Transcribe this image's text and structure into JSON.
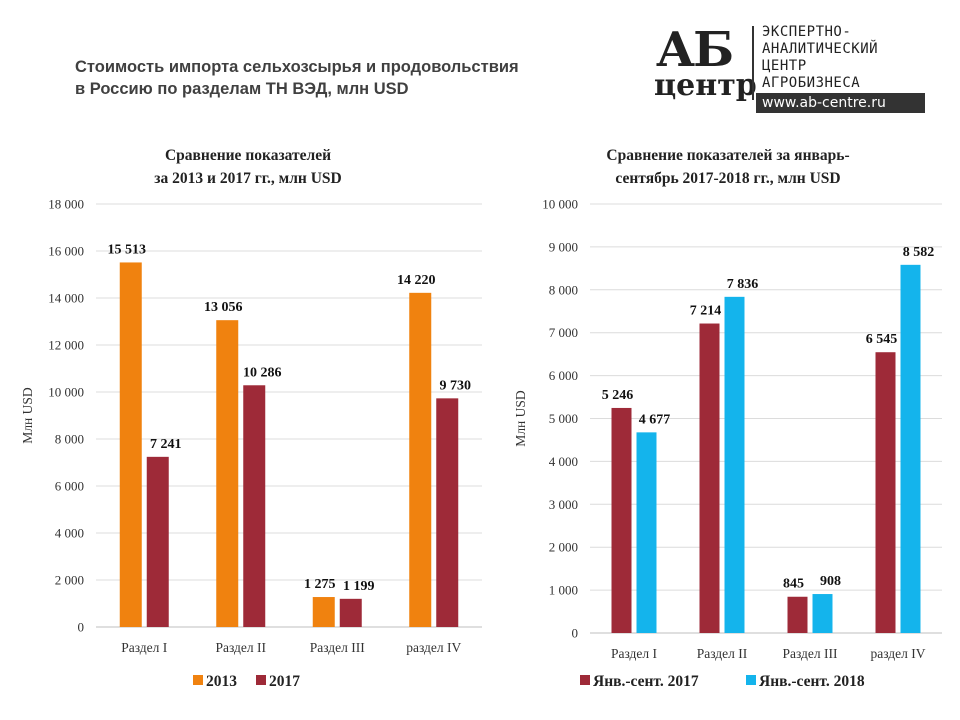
{
  "header": {
    "title_line1": "Стоимость импорта сельхозсырья и продовольствия",
    "title_line2": "в Россию по разделам ТН ВЭД, млн USD"
  },
  "logo": {
    "mark_top": "АБ",
    "mark_bottom": "центр",
    "lines": [
      "ЭКСПЕРТНО-",
      "АНАЛИТИЧЕСКИЙ",
      "ЦЕНТР",
      "АГРОБИЗНЕСА"
    ],
    "url": "www.ab-centre.ru"
  },
  "chart_data": [
    {
      "type": "bar",
      "title": [
        "Сравнение показателей",
        "за 2013 и 2017 гг., млн USD"
      ],
      "ylabel": "Млн USD",
      "xlabel": "",
      "ylim": [
        0,
        18000
      ],
      "yticks": [
        "0",
        "2 000",
        "4 000",
        "6 000",
        "8 000",
        "10 000",
        "12 000",
        "14 000",
        "16 000",
        "18 000"
      ],
      "ytick_values": [
        0,
        2000,
        4000,
        6000,
        8000,
        10000,
        12000,
        14000,
        16000,
        18000
      ],
      "grid": true,
      "legend": "bottom",
      "categories": [
        "Раздел I",
        "Раздел II",
        "Раздел III",
        "раздел IV"
      ],
      "series": [
        {
          "name": "2013",
          "color": "#f0820f",
          "values": [
            15513,
            13056,
            1275,
            14220
          ],
          "labels": [
            "15 513",
            "13 056",
            "1 275",
            "14 220"
          ]
        },
        {
          "name": "2017",
          "color": "#9e2a38",
          "values": [
            7241,
            10286,
            1199,
            9730
          ],
          "labels": [
            "7 241",
            "10 286",
            "1 199",
            "9 730"
          ]
        }
      ]
    },
    {
      "type": "bar",
      "title": [
        "Сравнение показателей за январь-",
        "сентябрь 2017-2018 гг., млн USD"
      ],
      "ylabel": "Млн USD",
      "xlabel": "",
      "ylim": [
        0,
        10000
      ],
      "yticks": [
        "0",
        "1 000",
        "2 000",
        "3 000",
        "4 000",
        "5 000",
        "6 000",
        "7 000",
        "8 000",
        "9 000",
        "10 000"
      ],
      "ytick_values": [
        0,
        1000,
        2000,
        3000,
        4000,
        5000,
        6000,
        7000,
        8000,
        9000,
        10000
      ],
      "grid": true,
      "legend": "bottom",
      "categories": [
        "Раздел I",
        "Раздел II",
        "Раздел III",
        "раздел IV"
      ],
      "series": [
        {
          "name": "Янв.-сент. 2017",
          "color": "#9e2a38",
          "values": [
            5246,
            7214,
            845,
            6545
          ],
          "labels": [
            "5 246",
            "7 214",
            "845",
            "6 545"
          ]
        },
        {
          "name": "Янв.-сент. 2018",
          "color": "#14b4ec",
          "values": [
            4677,
            7836,
            908,
            8582
          ],
          "labels": [
            "4 677",
            "7 836",
            "908",
            "8 582"
          ]
        }
      ]
    }
  ]
}
